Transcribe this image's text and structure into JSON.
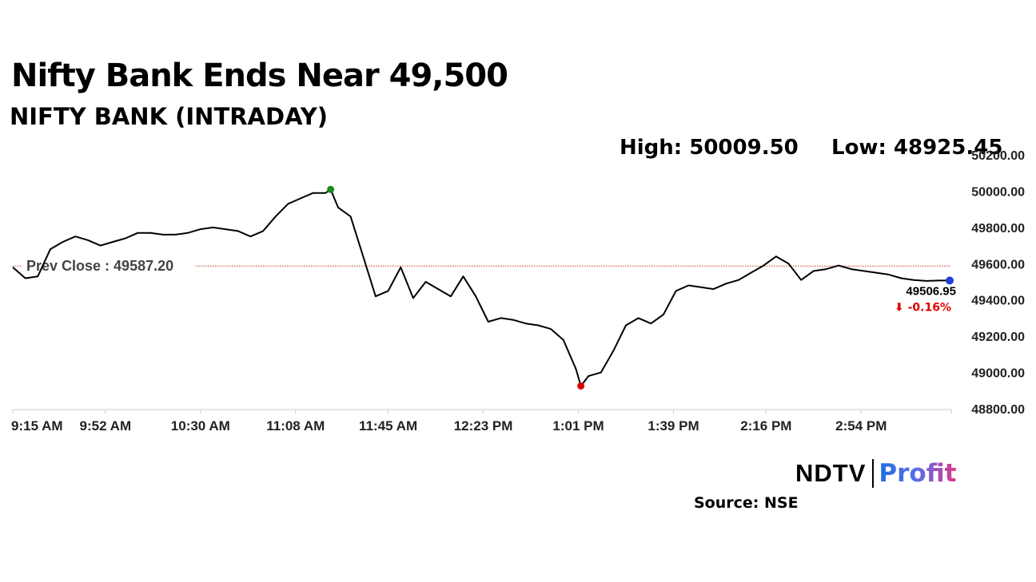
{
  "chart_data": {
    "type": "line",
    "title": "Nifty Bank Ends Near 49,500",
    "subtitle": "NIFTY BANK (INTRADAY)",
    "stats": {
      "high_label": "High: 50009.50",
      "low_label": "Low: 48925.45"
    },
    "prev_close": {
      "label": "Prev Close : 49587.20",
      "value": 49587.2
    },
    "last": {
      "value_label": "49506.95",
      "change_label": "⬇ -0.16%",
      "value": 49506.95
    },
    "x_tick_labels": [
      "9:15 AM",
      "9:52 AM",
      "10:30 AM",
      "11:08 AM",
      "11:45 AM",
      "12:23 PM",
      "1:01 PM",
      "1:39 PM",
      "2:16 PM",
      "2:54 PM"
    ],
    "y_ticks": [
      48800,
      49000,
      49200,
      49400,
      49600,
      49800,
      50000,
      50200
    ],
    "y_tick_labels": [
      "48800.00",
      "49000.00",
      "49200.00",
      "49400.00",
      "49600.00",
      "49800.00",
      "50000.00",
      "50200.00"
    ],
    "ylim": [
      48800,
      50200
    ],
    "xlim": [
      "9:15 AM",
      "3:30 PM"
    ],
    "series": [
      {
        "x": [
          "9:15 AM",
          "9:20 AM",
          "9:25 AM",
          "9:30 AM",
          "9:35 AM",
          "9:40 AM",
          "9:45 AM",
          "9:50 AM",
          "9:55 AM",
          "10:00 AM",
          "10:05 AM",
          "10:10 AM",
          "10:15 AM",
          "10:20 AM",
          "10:25 AM",
          "10:30 AM",
          "10:35 AM",
          "10:40 AM",
          "10:45 AM",
          "10:50 AM",
          "10:55 AM",
          "11:00 AM",
          "11:05 AM",
          "11:10 AM",
          "11:15 AM",
          "11:20 AM",
          "11:25 AM",
          "11:30 AM",
          "11:35 AM",
          "11:40 AM",
          "11:45 AM",
          "11:50 AM",
          "11:55 AM",
          "12:00 PM",
          "12:05 PM",
          "12:10 PM",
          "12:15 PM",
          "12:20 PM",
          "12:25 PM",
          "12:30 PM",
          "12:35 PM",
          "12:40 PM",
          "12:45 PM",
          "12:50 PM",
          "12:55 PM",
          "1:00 PM",
          "1:05 PM",
          "1:10 PM",
          "1:15 PM",
          "1:20 PM",
          "1:25 PM",
          "1:30 PM",
          "1:35 PM",
          "1:40 PM",
          "1:45 PM",
          "1:50 PM",
          "1:55 PM",
          "2:00 PM",
          "2:05 PM",
          "2:10 PM",
          "2:15 PM",
          "2:20 PM",
          "2:25 PM",
          "2:30 PM",
          "2:35 PM",
          "2:40 PM",
          "2:45 PM",
          "2:50 PM",
          "2:55 PM",
          "3:00 PM",
          "3:05 PM",
          "3:10 PM",
          "3:15 PM",
          "3:20 PM",
          "3:25 PM",
          "3:30 PM"
        ],
        "values": [
          49580,
          49520,
          49530,
          49680,
          49720,
          49750,
          49730,
          49700,
          49720,
          49740,
          49770,
          49770,
          49760,
          49760,
          49770,
          49790,
          49800,
          49790,
          49780,
          49750,
          49780,
          49860,
          49930,
          49960,
          49990,
          49990,
          49910,
          49860,
          49640,
          49420,
          49450,
          49580,
          49410,
          49500,
          49460,
          49420,
          49530,
          49420,
          49280,
          49300,
          49290,
          49270,
          49260,
          49240,
          49180,
          49020,
          48980,
          49000,
          49120,
          49260,
          49300,
          49270,
          49320,
          49450,
          49480,
          49470,
          49460,
          49490,
          49510,
          49550,
          49590,
          49640,
          49600,
          49510,
          49560,
          49570,
          49590,
          49570,
          49560,
          49550,
          49540,
          49520,
          49510,
          49505,
          49506.95,
          49506.95
        ],
        "high_point": {
          "x": "11:22 AM",
          "value": 50009.5
        },
        "low_point": {
          "x": "1:02 PM",
          "value": 48925.45
        }
      }
    ]
  },
  "colors": {
    "line": "#000000",
    "prev_close_line": "#c0392b",
    "high_marker": "#1a8a1a",
    "low_marker": "#e00000",
    "last_marker": "#1f3fd6",
    "change_negative": "#e00000",
    "axis": "#cccccc",
    "tick_text": "#222222"
  },
  "logo": {
    "brand": "NDTV",
    "product": "Profit"
  },
  "source": "Source: NSE"
}
